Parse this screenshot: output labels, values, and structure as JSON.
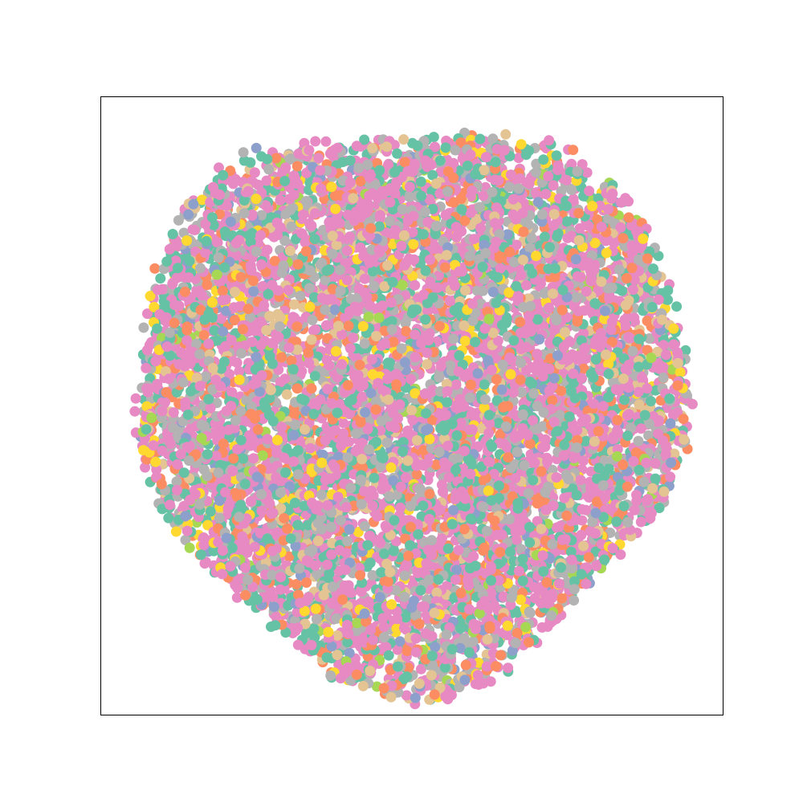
{
  "chart_data": {
    "type": "scatter",
    "title": "",
    "xlabel": "",
    "ylabel": "",
    "xlim": [
      -1.05,
      1.05
    ],
    "ylim": [
      -1.05,
      1.05
    ],
    "ticks_visible": false,
    "grid": false,
    "legend": "none",
    "point_count_estimate": 9000,
    "cluster": {
      "shape": "roughly circular blob",
      "center": [
        0.0,
        0.03
      ],
      "radius": 0.93
    },
    "series": [
      {
        "color": "#e78ac3",
        "share": 0.4
      },
      {
        "color": "#66c2a5",
        "share": 0.18
      },
      {
        "color": "#b3b3b3",
        "share": 0.16
      },
      {
        "color": "#fc8d62",
        "share": 0.1
      },
      {
        "color": "#e5c494",
        "share": 0.06
      },
      {
        "color": "#8da0cb",
        "share": 0.04
      },
      {
        "color": "#ffd92f",
        "share": 0.04
      },
      {
        "color": "#a6d854",
        "share": 0.02
      }
    ]
  }
}
